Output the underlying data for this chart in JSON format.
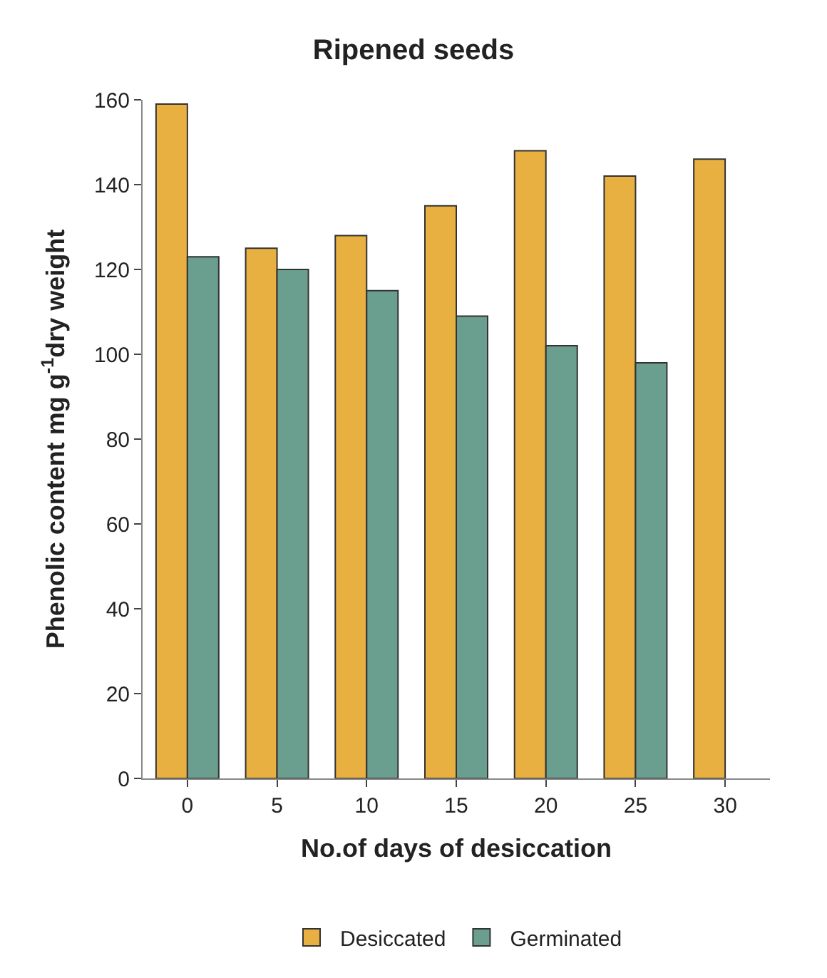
{
  "chart_data": {
    "type": "bar",
    "title": "Ripened seeds",
    "xlabel": "No.of days of desiccation",
    "ylabel": "Phenolic content mg g$^{-1}$dry weight",
    "categories": [
      "0",
      "5",
      "10",
      "15",
      "20",
      "25",
      "30"
    ],
    "series": [
      {
        "name": "Desiccated",
        "color": "#e8b040",
        "values": [
          159,
          125,
          128,
          135,
          148,
          142,
          146
        ]
      },
      {
        "name": "Germinated",
        "color": "#6a9e8e",
        "values": [
          123,
          120,
          115,
          109,
          102,
          98,
          null
        ]
      }
    ],
    "ylim": [
      0,
      160
    ],
    "yticks": [
      0,
      20,
      40,
      60,
      80,
      100,
      120,
      140,
      160
    ],
    "legend": "bottom"
  }
}
